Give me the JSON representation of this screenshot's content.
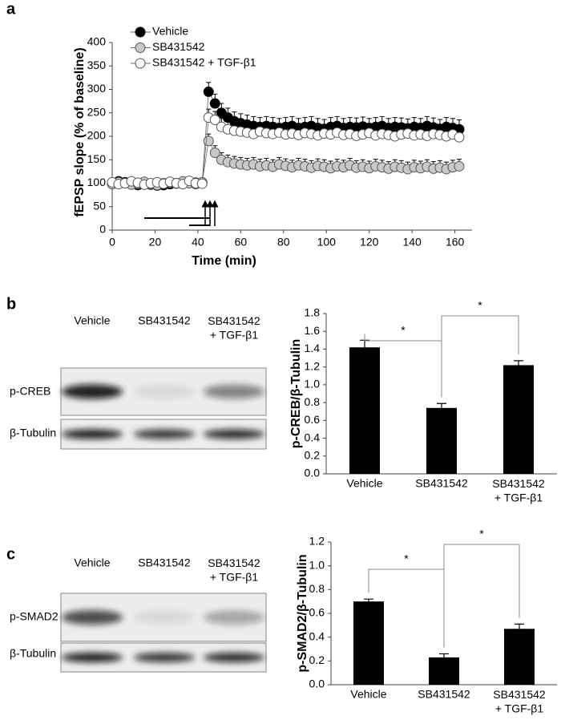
{
  "panel_labels": [
    "a",
    "b",
    "c"
  ],
  "blots": [
    {
      "lanes": [
        "Vehicle",
        "SB431542",
        "SB431542\n+ TGF-β1"
      ],
      "rows": [
        "p-CREB",
        "β-Tubulin"
      ]
    },
    {
      "lanes": [
        "Vehicle",
        "SB431542",
        "SB431542\n+ TGF-β1"
      ],
      "rows": [
        "p-SMAD2",
        "β-Tubulin"
      ]
    }
  ],
  "chart_data": [
    {
      "type": "scatter",
      "x_label": "Time (min)",
      "y_label": "fEPSP slope (% of baseline)",
      "x": [
        0,
        3,
        6,
        9,
        12,
        15,
        18,
        21,
        24,
        27,
        30,
        33,
        36,
        39,
        42,
        45,
        48,
        51,
        54,
        57,
        60,
        63,
        66,
        69,
        72,
        75,
        78,
        81,
        84,
        87,
        90,
        93,
        96,
        99,
        102,
        105,
        108,
        111,
        114,
        117,
        120,
        123,
        126,
        129,
        132,
        135,
        138,
        141,
        144,
        147,
        150,
        153,
        156,
        159,
        162
      ],
      "series": [
        {
          "name": "Vehicle",
          "color": "#000000",
          "values": [
            100,
            104,
            102,
            98,
            96,
            100,
            97,
            95,
            96,
            98,
            100,
            102,
            104,
            101,
            100,
            295,
            270,
            250,
            240,
            232,
            228,
            225,
            222,
            220,
            222,
            220,
            218,
            220,
            222,
            218,
            220,
            222,
            218,
            216,
            220,
            222,
            218,
            220,
            219,
            221,
            218,
            220,
            222,
            218,
            220,
            219,
            217,
            220,
            218,
            222,
            219,
            216,
            220,
            218,
            215
          ],
          "errors": [
            6,
            6,
            6,
            6,
            6,
            6,
            6,
            6,
            6,
            6,
            6,
            6,
            6,
            6,
            6,
            20,
            20,
            20,
            20,
            20,
            20,
            20,
            20,
            20,
            20,
            20,
            20,
            20,
            20,
            20,
            20,
            20,
            20,
            20,
            20,
            20,
            20,
            20,
            20,
            20,
            20,
            20,
            20,
            20,
            20,
            20,
            20,
            20,
            20,
            20,
            20,
            20,
            20,
            20,
            20
          ]
        },
        {
          "name": "SB431542",
          "color": "#c8c8c8",
          "values": [
            98,
            102,
            100,
            97,
            99,
            103,
            98,
            96,
            100,
            101,
            99,
            104,
            100,
            98,
            102,
            190,
            165,
            150,
            145,
            142,
            140,
            138,
            140,
            136,
            138,
            135,
            140,
            137,
            134,
            138,
            136,
            133,
            137,
            135,
            132,
            136,
            134,
            138,
            133,
            135,
            132,
            136,
            134,
            131,
            135,
            133,
            130,
            134,
            132,
            135,
            131,
            133,
            130,
            134,
            136
          ],
          "errors": [
            6,
            6,
            6,
            6,
            6,
            6,
            6,
            6,
            6,
            6,
            6,
            6,
            6,
            6,
            6,
            15,
            15,
            15,
            15,
            15,
            15,
            15,
            15,
            15,
            15,
            15,
            15,
            15,
            15,
            15,
            15,
            15,
            15,
            15,
            15,
            15,
            15,
            15,
            15,
            15,
            15,
            15,
            15,
            15,
            15,
            15,
            15,
            15,
            15,
            15,
            15,
            15,
            15,
            15,
            15
          ]
        },
        {
          "name": "SB431542 + TGF-β1",
          "color": "#ffffff",
          "values": [
            102,
            98,
            100,
            104,
            101,
            97,
            100,
            102,
            99,
            103,
            100,
            98,
            105,
            100,
            99,
            240,
            235,
            220,
            215,
            212,
            210,
            208,
            205,
            210,
            207,
            205,
            208,
            204,
            206,
            203,
            207,
            205,
            202,
            206,
            204,
            208,
            203,
            205,
            201,
            204,
            207,
            202,
            205,
            203,
            200,
            204,
            206,
            202,
            204,
            201,
            205,
            203,
            200,
            204,
            198
          ],
          "errors": [
            8,
            8,
            8,
            8,
            8,
            8,
            8,
            8,
            8,
            8,
            8,
            8,
            8,
            8,
            8,
            18,
            18,
            18,
            18,
            18,
            18,
            18,
            18,
            18,
            18,
            18,
            18,
            18,
            18,
            18,
            18,
            18,
            18,
            18,
            18,
            18,
            18,
            18,
            18,
            18,
            18,
            18,
            18,
            18,
            18,
            18,
            18,
            18,
            18,
            18,
            18,
            18,
            18,
            18,
            18
          ]
        }
      ],
      "xlim": [
        0,
        168
      ],
      "xticks": [
        0,
        20,
        40,
        60,
        80,
        100,
        120,
        140,
        160
      ],
      "ylim": [
        0,
        400
      ],
      "yticks": [
        0,
        50,
        100,
        150,
        200,
        250,
        300,
        350,
        400
      ],
      "legend": "top-left"
    },
    {
      "type": "bar",
      "y_label": "p-CREB/β-Tubulin",
      "categories": [
        "Vehicle",
        "SB431542",
        "SB431542\n+ TGF-β1"
      ],
      "values": [
        1.42,
        0.74,
        1.22
      ],
      "errors": [
        0.08,
        0.05,
        0.05
      ],
      "color": "#000000",
      "ylim": [
        0,
        1.8
      ],
      "yticks": [
        {
          "value": 0,
          "label": "0.0"
        },
        0.2,
        0.4,
        0.6,
        0.8,
        {
          "value": 1,
          "label": "1.0"
        },
        1.2,
        1.4,
        1.6,
        1.8
      ],
      "significance": [
        {
          "pair": [
            0,
            1
          ],
          "label": "*"
        },
        {
          "pair": [
            1,
            2
          ],
          "label": "*"
        }
      ]
    },
    {
      "type": "bar",
      "y_label": "p-SMAD2/β-Tubulin",
      "categories": [
        "Vehicle",
        "SB431542",
        "SB431542\n+ TGF-β1"
      ],
      "values": [
        0.7,
        0.23,
        0.47
      ],
      "errors": [
        0.02,
        0.03,
        0.04
      ],
      "color": "#000000",
      "ylim": [
        0,
        1.2
      ],
      "yticks": [
        {
          "value": 0,
          "label": "0.0"
        },
        0.2,
        0.4,
        0.6,
        0.8,
        {
          "value": 1,
          "label": "1.0"
        },
        1.2
      ],
      "significance": [
        {
          "pair": [
            0,
            1
          ],
          "label": "*"
        },
        {
          "pair": [
            1,
            2
          ],
          "label": "*"
        }
      ]
    }
  ]
}
